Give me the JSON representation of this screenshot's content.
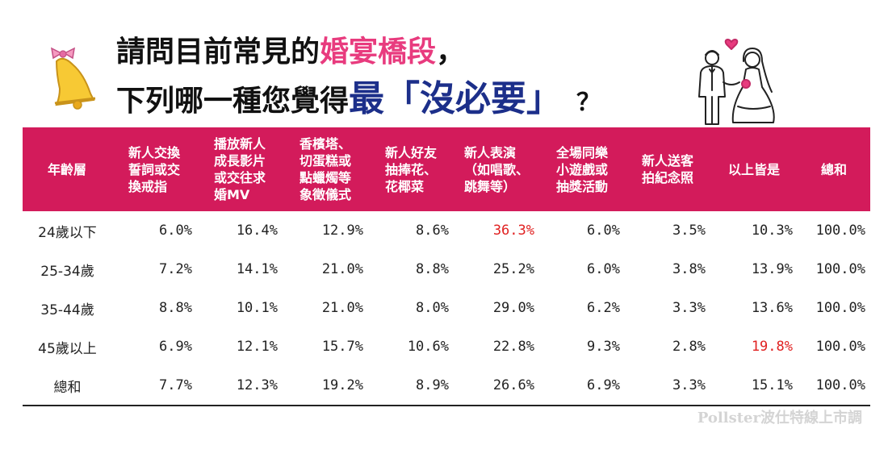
{
  "title": {
    "line1_prefix": "請問目前常見的",
    "line1_highlight": "婚宴橋段",
    "line1_suffix": "，",
    "line2_prefix": "下列哪一種您覺得",
    "line2_highlight": "最「沒必要」",
    "line2_suffix": "？"
  },
  "icons": {
    "left": "bell-icon",
    "right": "wedding-couple-icon"
  },
  "colors": {
    "header_bg": "#d31b5b",
    "title_highlight_pink": "#e83b7e",
    "title_highlight_blue": "#1c2f8a",
    "cell_highlight": "#e02020"
  },
  "chart_data": {
    "type": "table",
    "columns": [
      "年齡層",
      "新人交換\n誓詞或交\n換戒指",
      "播放新人\n成長影片\n或交往求\n婚MV",
      "香檳塔、\n切蛋糕或\n點蠟燭等\n象徵儀式",
      "新人好友\n抽捧花、\n花椰菜",
      "新人表演\n（如唱歌、\n跳舞等）",
      "全場同樂\n小遊戲或\n抽獎活動",
      "新人送客\n拍紀念照",
      "以上皆是",
      "總和"
    ],
    "rows": [
      {
        "label": "24歲以下",
        "values": [
          "6.0%",
          "16.4%",
          "12.9%",
          "8.6%",
          "36.3%",
          "6.0%",
          "3.5%",
          "10.3%",
          "100.0%"
        ]
      },
      {
        "label": "25-34歲",
        "values": [
          "7.2%",
          "14.1%",
          "21.0%",
          "8.8%",
          "25.2%",
          "6.0%",
          "3.8%",
          "13.9%",
          "100.0%"
        ]
      },
      {
        "label": "35-44歲",
        "values": [
          "8.8%",
          "10.1%",
          "21.0%",
          "8.0%",
          "29.0%",
          "6.2%",
          "3.3%",
          "13.6%",
          "100.0%"
        ]
      },
      {
        "label": "45歲以上",
        "values": [
          "6.9%",
          "12.1%",
          "15.7%",
          "10.6%",
          "22.8%",
          "9.3%",
          "2.8%",
          "19.8%",
          "100.0%"
        ]
      },
      {
        "label": "總和",
        "values": [
          "7.7%",
          "12.3%",
          "19.2%",
          "8.9%",
          "26.6%",
          "6.9%",
          "3.3%",
          "15.1%",
          "100.0%"
        ]
      }
    ],
    "highlighted_cells": [
      {
        "row": 0,
        "col": 4
      },
      {
        "row": 3,
        "col": 7
      }
    ]
  },
  "source": "Pollster波仕特線上市調"
}
